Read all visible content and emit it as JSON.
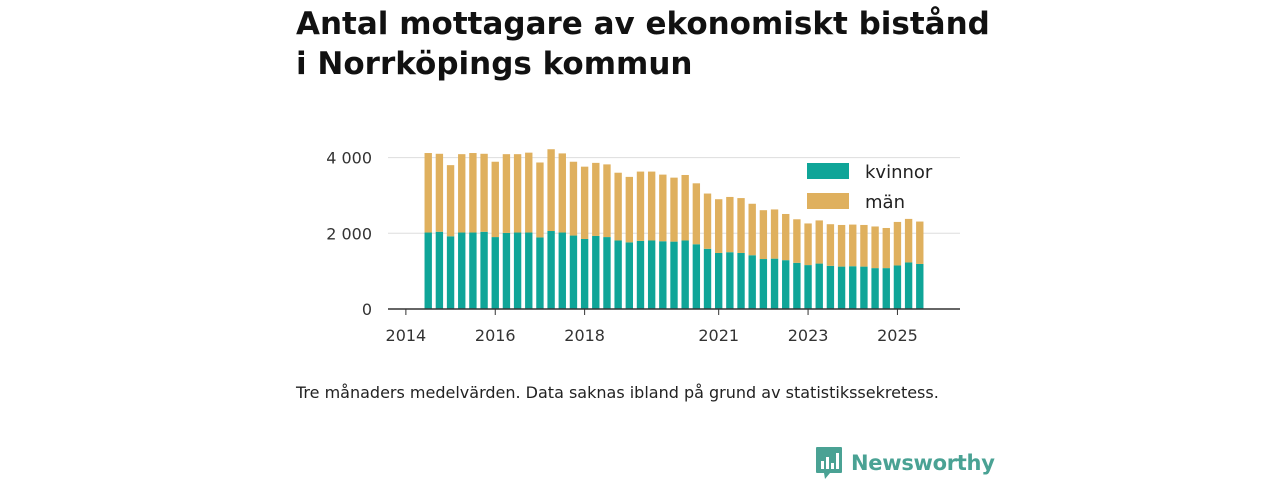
{
  "title_line1": "Antal mottagare av ekonomiskt bistånd",
  "title_line2": "i Norrköpings kommun",
  "note": "Tre månaders medelvärden. Data saknas ibland på grund av statistikssekretess.",
  "brand": {
    "name": "Newsworthy",
    "color": "#4aa294"
  },
  "chart_data": {
    "type": "bar",
    "stacked": true,
    "title": "Antal mottagare av ekonomiskt bistånd i Norrköpings kommun",
    "xlabel": "",
    "ylabel": "",
    "ylim": [
      0,
      4200
    ],
    "y_ticks": [
      0,
      2000,
      4000
    ],
    "y_tick_labels": [
      "0",
      "2 000",
      "4 000"
    ],
    "x_tick_labels": [
      "2014",
      "2016",
      "2018",
      "2021",
      "2023",
      "2025"
    ],
    "x_tick_values": [
      2014.0,
      2016.0,
      2018.0,
      2021.0,
      2023.0,
      2025.0
    ],
    "x_range": [
      2013.6,
      2026.4
    ],
    "legend_position": "top-right",
    "categories": [
      2014.5,
      2014.75,
      2015.0,
      2015.25,
      2015.5,
      2015.75,
      2016.0,
      2016.25,
      2016.5,
      2016.75,
      2017.0,
      2017.25,
      2017.5,
      2017.75,
      2018.0,
      2018.25,
      2018.5,
      2018.75,
      2019.0,
      2019.25,
      2019.5,
      2019.75,
      2020.0,
      2020.25,
      2020.5,
      2020.75,
      2021.0,
      2021.25,
      2021.5,
      2021.75,
      2022.0,
      2022.25,
      2022.5,
      2022.75,
      2023.0,
      2023.25,
      2023.5,
      2023.75,
      2024.0,
      2024.25,
      2024.5,
      2024.75,
      2025.0,
      2025.25,
      2025.5
    ],
    "series": [
      {
        "name": "kvinnor",
        "color": "#0fa598",
        "values": [
          2020,
          2040,
          1920,
          2020,
          2020,
          2040,
          1900,
          2010,
          2020,
          2020,
          1890,
          2060,
          2020,
          1940,
          1850,
          1930,
          1900,
          1810,
          1760,
          1800,
          1810,
          1790,
          1780,
          1810,
          1710,
          1590,
          1480,
          1500,
          1480,
          1420,
          1320,
          1330,
          1290,
          1220,
          1160,
          1200,
          1140,
          1120,
          1130,
          1120,
          1080,
          1080,
          1150,
          1230,
          1190
        ]
      },
      {
        "name": "män",
        "color": "#dfb05e",
        "values": [
          2100,
          2060,
          1880,
          2070,
          2100,
          2060,
          1990,
          2080,
          2070,
          2110,
          1980,
          2160,
          2090,
          1950,
          1910,
          1930,
          1920,
          1790,
          1730,
          1830,
          1820,
          1760,
          1690,
          1730,
          1610,
          1460,
          1420,
          1460,
          1450,
          1360,
          1290,
          1300,
          1220,
          1150,
          1100,
          1140,
          1100,
          1100,
          1100,
          1100,
          1100,
          1060,
          1150,
          1150,
          1120
        ]
      }
    ]
  }
}
